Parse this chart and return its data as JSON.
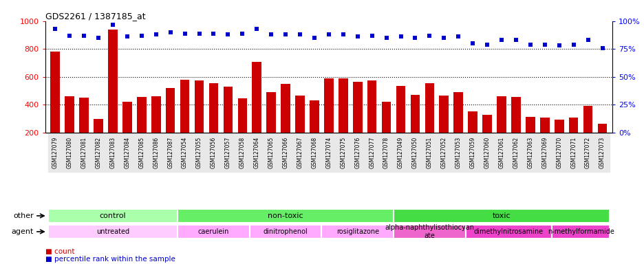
{
  "title": "GDS2261 / 1387185_at",
  "categories": [
    "GSM127079",
    "GSM127080",
    "GSM127081",
    "GSM127082",
    "GSM127083",
    "GSM127084",
    "GSM127085",
    "GSM127086",
    "GSM127087",
    "GSM127054",
    "GSM127055",
    "GSM127056",
    "GSM127057",
    "GSM127058",
    "GSM127064",
    "GSM127065",
    "GSM127066",
    "GSM127067",
    "GSM127068",
    "GSM127074",
    "GSM127075",
    "GSM127076",
    "GSM127077",
    "GSM127078",
    "GSM127049",
    "GSM127050",
    "GSM127051",
    "GSM127052",
    "GSM127053",
    "GSM127059",
    "GSM127060",
    "GSM127061",
    "GSM127062",
    "GSM127063",
    "GSM127069",
    "GSM127070",
    "GSM127071",
    "GSM127072",
    "GSM127073"
  ],
  "bar_values": [
    780,
    460,
    450,
    300,
    940,
    420,
    455,
    460,
    520,
    580,
    575,
    555,
    530,
    445,
    710,
    490,
    550,
    465,
    430,
    590,
    590,
    565,
    575,
    420,
    535,
    470,
    555,
    465,
    490,
    355,
    330,
    460,
    455,
    315,
    310,
    295,
    310,
    390,
    265
  ],
  "percentile_values": [
    93,
    87,
    87,
    85,
    97,
    86,
    87,
    88,
    90,
    89,
    89,
    89,
    88,
    89,
    93,
    88,
    88,
    88,
    85,
    88,
    88,
    86,
    87,
    85,
    86,
    85,
    87,
    85,
    86,
    80,
    79,
    83,
    83,
    79,
    79,
    78,
    79,
    83,
    76
  ],
  "bar_color": "#cc0000",
  "dot_color": "#0000cc",
  "ylim_left": [
    200,
    1000
  ],
  "ylim_right": [
    0,
    100
  ],
  "yticks_left": [
    200,
    400,
    600,
    800,
    1000
  ],
  "yticks_right": [
    0,
    25,
    50,
    75,
    100
  ],
  "grid_values": [
    400,
    600,
    800
  ],
  "group_other": [
    {
      "label": "control",
      "start": 0,
      "end": 9,
      "color": "#aaffaa"
    },
    {
      "label": "non-toxic",
      "start": 9,
      "end": 24,
      "color": "#66ee66"
    },
    {
      "label": "toxic",
      "start": 24,
      "end": 39,
      "color": "#44dd44"
    }
  ],
  "group_agent": [
    {
      "label": "untreated",
      "start": 0,
      "end": 9,
      "color": "#ffccff"
    },
    {
      "label": "caerulein",
      "start": 9,
      "end": 14,
      "color": "#ffaaff"
    },
    {
      "label": "dinitrophenol",
      "start": 14,
      "end": 19,
      "color": "#ffaaff"
    },
    {
      "label": "rosiglitazone",
      "start": 19,
      "end": 24,
      "color": "#ffaaff"
    },
    {
      "label": "alpha-naphthylisothiocyan\nate",
      "start": 24,
      "end": 29,
      "color": "#ee66cc"
    },
    {
      "label": "dimethylnitrosamine",
      "start": 29,
      "end": 35,
      "color": "#ee44cc"
    },
    {
      "label": "n-methylformamide",
      "start": 35,
      "end": 39,
      "color": "#ee44cc"
    }
  ],
  "background_color": "#ffffff",
  "plot_bg_color": "#ffffff",
  "tick_label_bg": "#e8e8e8",
  "legend_items": [
    {
      "label": "count",
      "color": "#cc0000",
      "marker": "s"
    },
    {
      "label": "percentile rank within the sample",
      "color": "#0000cc",
      "marker": "s"
    }
  ],
  "left_labels": [
    {
      "text": "other",
      "row": "other"
    },
    {
      "text": "agent",
      "row": "agent"
    }
  ]
}
